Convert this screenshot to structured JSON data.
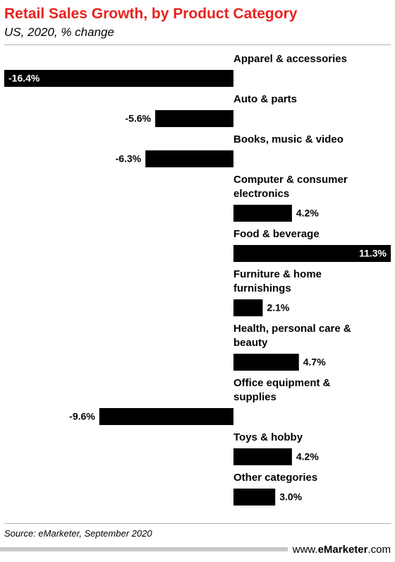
{
  "title": "Retail Sales Growth, by Product Category",
  "subtitle": "US, 2020, % change",
  "source": "Source: eMarketer, September 2020",
  "brand": {
    "prefix": "www.",
    "name": "eMarketer",
    "suffix": ".com"
  },
  "colors": {
    "title": "#e8231f",
    "bar": "#000000",
    "bar_label_inside": "#ffffff"
  },
  "chart_data": {
    "type": "bar",
    "orientation": "horizontal",
    "categories": [
      [
        "Apparel & accessories"
      ],
      [
        "Auto & parts"
      ],
      [
        "Books, music & video"
      ],
      [
        "Computer & consumer",
        "electronics"
      ],
      [
        "Food & beverage"
      ],
      [
        "Furniture & home",
        "furnishings"
      ],
      [
        "Health, personal care &",
        "beauty"
      ],
      [
        "Office equipment &",
        "supplies"
      ],
      [
        "Toys & hobby"
      ],
      [
        "Other categories"
      ]
    ],
    "values": [
      -16.4,
      -5.6,
      -6.3,
      4.2,
      11.3,
      2.1,
      4.7,
      -9.6,
      4.2,
      3.0
    ],
    "value_labels": [
      "-16.4%",
      "-5.6%",
      "-6.3%",
      "4.2%",
      "11.3%",
      "2.1%",
      "4.7%",
      "-9.6%",
      "4.2%",
      "3.0%"
    ],
    "unit": "%",
    "xlim": [
      -16.4,
      11.3
    ],
    "grid": false,
    "legend": "none"
  }
}
